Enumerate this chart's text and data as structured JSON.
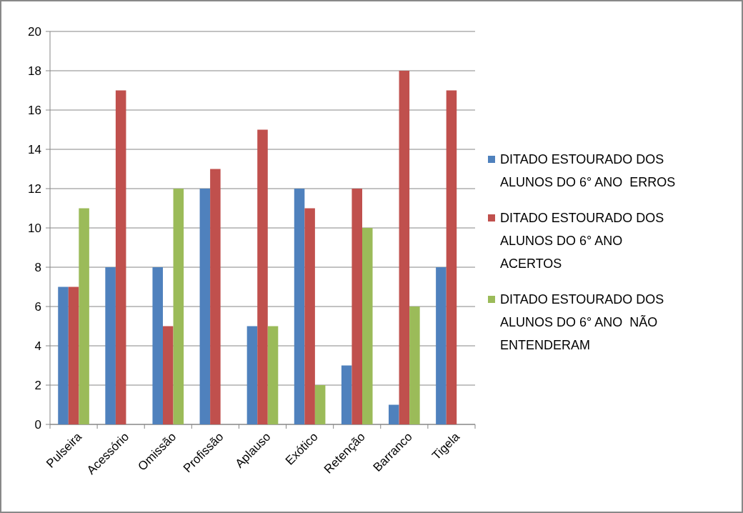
{
  "chart_data": {
    "type": "bar",
    "categories": [
      "Pulseira",
      "Acessório",
      "Omissão",
      "Profissão",
      "Aplauso",
      "Exótico",
      "Retenção",
      "Barranco",
      "Tigela"
    ],
    "series": [
      {
        "name": "DITADO ESTOURADO DOS ALUNOS DO 6° ANO  ERROS",
        "color": "#4f81bd",
        "values": [
          7,
          8,
          8,
          12,
          5,
          12,
          3,
          1,
          8
        ]
      },
      {
        "name": "DITADO ESTOURADO DOS ALUNOS DO 6° ANO ACERTOS",
        "color": "#c0504d",
        "values": [
          7,
          17,
          5,
          13,
          15,
          11,
          12,
          18,
          17
        ]
      },
      {
        "name": "DITADO ESTOURADO DOS ALUNOS DO 6° ANO  NÃO ENTENDERAM",
        "color": "#9bbb59",
        "values": [
          11,
          0,
          12,
          0,
          5,
          2,
          10,
          6,
          0
        ]
      }
    ],
    "ylim": [
      0,
      20
    ],
    "yticks": [
      0,
      2,
      4,
      6,
      8,
      10,
      12,
      14,
      16,
      18,
      20
    ],
    "grid": "y",
    "legend": "right"
  }
}
